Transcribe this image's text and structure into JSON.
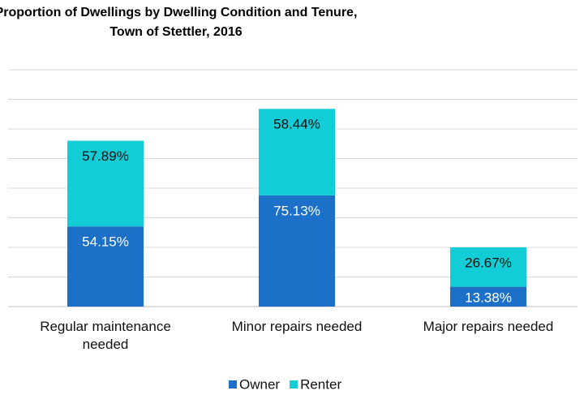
{
  "chart_data": {
    "type": "stacked_bar",
    "title": [
      "Proportion of Dwellings by Dwelling Condition and Tenure,",
      "Town of Stettler, 2016"
    ],
    "categories": [
      "Regular maintenance needed",
      "Minor repairs needed",
      "Major repairs needed"
    ],
    "series": [
      {
        "name": "Owner",
        "color": "#1d70c8",
        "values": [
          54.15,
          75.13,
          13.38
        ],
        "value_labels": [
          "54.15%",
          "75.13%",
          "13.38%"
        ],
        "label_color": "#ffffff"
      },
      {
        "name": "Renter",
        "color": "#12cdd6",
        "values": [
          57.89,
          58.44,
          26.67
        ],
        "value_labels": [
          "57.89%",
          "58.44%",
          "26.67%"
        ],
        "label_color": "#111111"
      }
    ],
    "ylim": [
      0,
      160
    ],
    "yticks": [
      0,
      20,
      40,
      60,
      80,
      100,
      120,
      140,
      160
    ],
    "grid": true
  }
}
